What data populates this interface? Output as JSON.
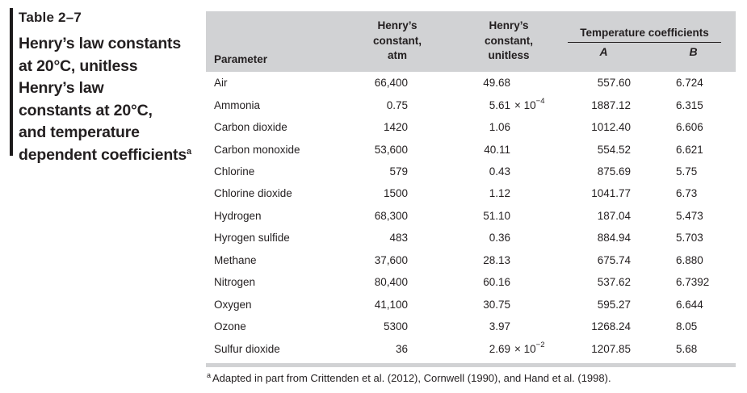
{
  "title": {
    "label": "Table 2–7"
  },
  "caption": {
    "lines": [
      {
        "text": "Henry’s law constants",
        "sup": ""
      },
      {
        "text": "at 20°C, unitless",
        "sup": ""
      },
      {
        "text": "Henry’s law",
        "sup": ""
      },
      {
        "text": "constants at 20°C,",
        "sup": ""
      },
      {
        "text": "and temperature",
        "sup": ""
      },
      {
        "text": "dependent coefficients",
        "sup": "a"
      }
    ]
  },
  "table": {
    "header": {
      "parameter": "Parameter",
      "henrys_atm": "Henry’s\nconstant,\natm",
      "henrys_unitless": "Henry’s\nconstant,\nunitless",
      "temp_coefficients": "Temperature coefficients",
      "col_a": "A",
      "col_b": "B"
    },
    "rows": [
      {
        "parameter": "Air",
        "atm": "66,400",
        "unitless": "49.68",
        "exp_base": "",
        "exp_sup": "",
        "A": "557.60",
        "B": "6.724"
      },
      {
        "parameter": "Ammonia",
        "atm": "0.75",
        "unitless": "5.61",
        "exp_base": "× 10",
        "exp_sup": "−4",
        "A": "1887.12",
        "B": "6.315"
      },
      {
        "parameter": "Carbon dioxide",
        "atm": "1420",
        "unitless": "1.06",
        "exp_base": "",
        "exp_sup": "",
        "A": "1012.40",
        "B": "6.606"
      },
      {
        "parameter": "Carbon monoxide",
        "atm": "53,600",
        "unitless": "40.11",
        "exp_base": "",
        "exp_sup": "",
        "A": "554.52",
        "B": "6.621"
      },
      {
        "parameter": "Chlorine",
        "atm": "579",
        "unitless": "0.43",
        "exp_base": "",
        "exp_sup": "",
        "A": "875.69",
        "B": "5.75"
      },
      {
        "parameter": "Chlorine dioxide",
        "atm": "1500",
        "unitless": "1.12",
        "exp_base": "",
        "exp_sup": "",
        "A": "1041.77",
        "B": "6.73"
      },
      {
        "parameter": "Hydrogen",
        "atm": "68,300",
        "unitless": "51.10",
        "exp_base": "",
        "exp_sup": "",
        "A": "187.04",
        "B": "5.473"
      },
      {
        "parameter": "Hyrogen sulfide",
        "atm": "483",
        "unitless": "0.36",
        "exp_base": "",
        "exp_sup": "",
        "A": "884.94",
        "B": "5.703"
      },
      {
        "parameter": "Methane",
        "atm": "37,600",
        "unitless": "28.13",
        "exp_base": "",
        "exp_sup": "",
        "A": "675.74",
        "B": "6.880"
      },
      {
        "parameter": "Nitrogen",
        "atm": "80,400",
        "unitless": "60.16",
        "exp_base": "",
        "exp_sup": "",
        "A": "537.62",
        "B": "6.7392"
      },
      {
        "parameter": "Oxygen",
        "atm": "41,100",
        "unitless": "30.75",
        "exp_base": "",
        "exp_sup": "",
        "A": "595.27",
        "B": "6.644"
      },
      {
        "parameter": "Ozone",
        "atm": "5300",
        "unitless": "3.97",
        "exp_base": "",
        "exp_sup": "",
        "A": "1268.24",
        "B": "8.05"
      },
      {
        "parameter": "Sulfur dioxide",
        "atm": "36",
        "unitless": "2.69",
        "exp_base": "× 10",
        "exp_sup": "−2",
        "A": "1207.85",
        "B": "5.68"
      }
    ]
  },
  "footnote": {
    "marker": "a",
    "text": "Adapted in part from Crittenden et al. (2012), Cornwell (1990), and Hand et al. (1998)."
  },
  "colors": {
    "header_band_bg": "#d1d2d4",
    "text": "#231f20",
    "caption_bar": "#1c1a1b"
  }
}
